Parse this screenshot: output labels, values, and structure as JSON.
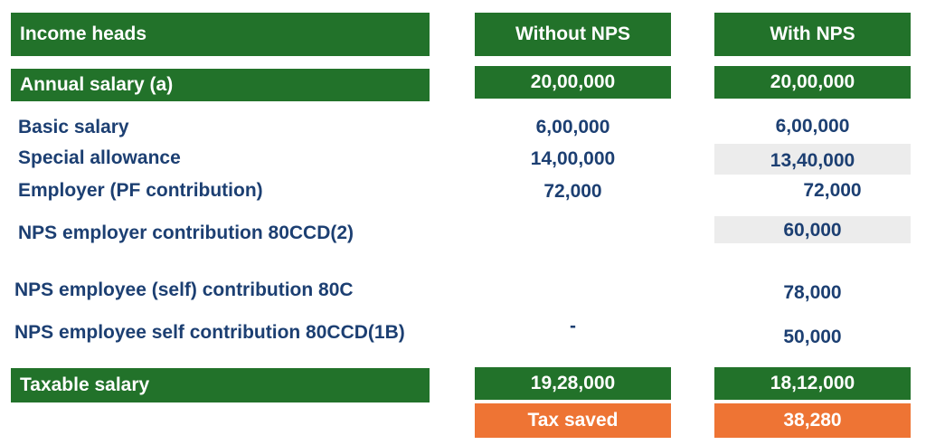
{
  "header": {
    "income_heads": "Income heads",
    "without_nps": "Without NPS",
    "with_nps": "With NPS"
  },
  "annual_salary": {
    "label": "Annual salary (a)",
    "without": "20,00,000",
    "with": "20,00,000"
  },
  "rows": [
    {
      "label": "Basic salary",
      "without": "6,00,000",
      "with": "6,00,000"
    },
    {
      "label": "Special allowance",
      "without": "14,00,000",
      "with": "13,40,000"
    },
    {
      "label": "Employer (PF contribution)",
      "without": "72,000",
      "with": "72,000"
    },
    {
      "label": "NPS employer contribution 80CCD(2)",
      "without": "",
      "with": "60,000"
    },
    {
      "label": "NPS employee (self) contribution 80C",
      "without": "",
      "with": "78,000"
    },
    {
      "label": "NPS employee self contribution 80CCD(1B)",
      "without": "-",
      "with": "50,000"
    }
  ],
  "taxable_salary": {
    "label": "Taxable salary",
    "without": "19,28,000",
    "with": "18,12,000"
  },
  "tax_saved": {
    "label": "Tax saved",
    "value": "38,280"
  },
  "colors": {
    "green": "#22722a",
    "orange": "#ee7434",
    "text_blue": "#1c3f72",
    "grey_highlight": "#ececec"
  }
}
